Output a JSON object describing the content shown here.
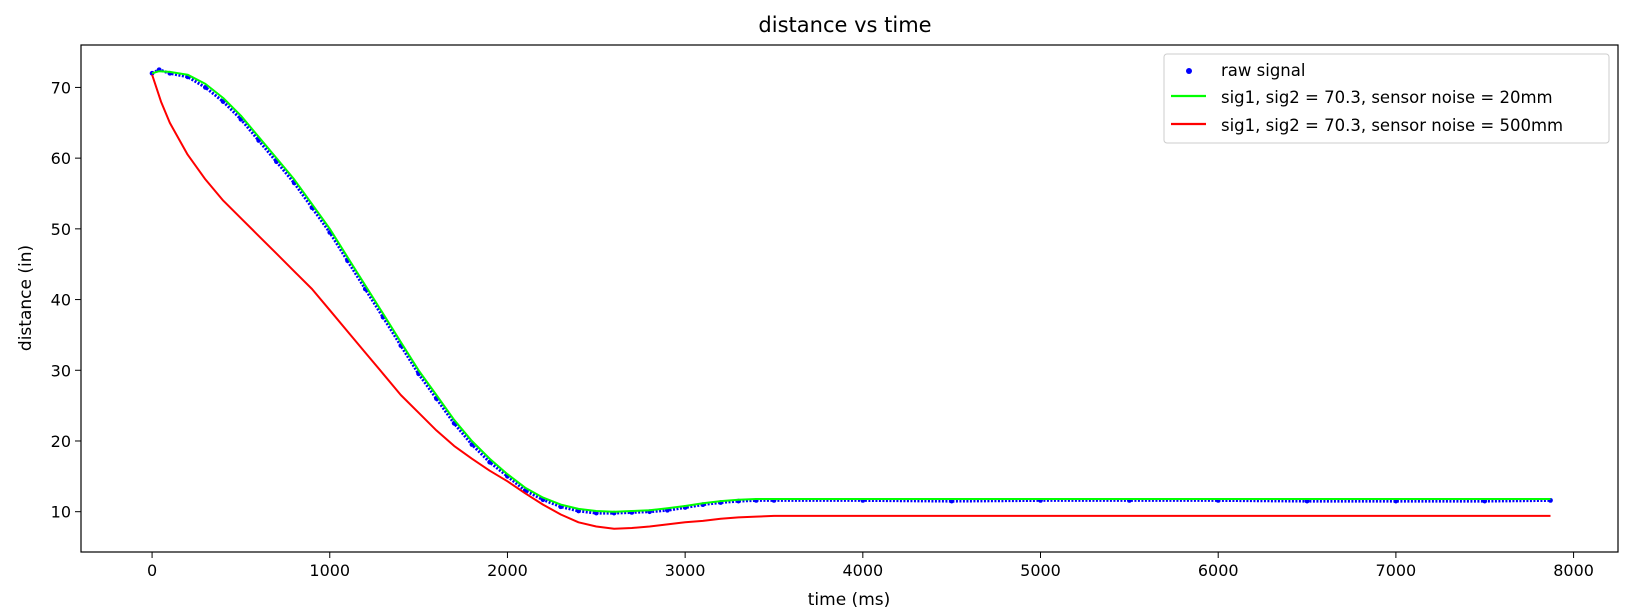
{
  "chart_data": {
    "type": "line",
    "title": "distance vs time",
    "xlabel": "time (ms)",
    "ylabel": "distance (in)",
    "xlim": [
      -400,
      8250
    ],
    "ylim": [
      4.3,
      76
    ],
    "xticks": [
      0,
      1000,
      2000,
      3000,
      4000,
      5000,
      6000,
      7000,
      8000
    ],
    "yticks": [
      10,
      20,
      30,
      40,
      50,
      60,
      70
    ],
    "grid": false,
    "legend_position": "top-right",
    "series": [
      {
        "name": "raw signal",
        "kind": "scatter",
        "color": "#0000ff",
        "x": [
          0,
          40,
          100,
          200,
          300,
          400,
          500,
          600,
          700,
          800,
          900,
          1000,
          1100,
          1200,
          1300,
          1400,
          1500,
          1600,
          1700,
          1800,
          1900,
          2000,
          2100,
          2200,
          2300,
          2400,
          2500,
          2600,
          2700,
          2800,
          2900,
          3000,
          3100,
          3200,
          3300,
          3400,
          3500,
          4000,
          4500,
          5000,
          5500,
          6000,
          6500,
          7000,
          7500,
          7870
        ],
        "y": [
          72,
          72.5,
          72,
          71.5,
          70,
          68,
          65.5,
          62.5,
          59.5,
          56.5,
          53,
          49.5,
          45.5,
          41.5,
          37.5,
          33.5,
          29.5,
          26,
          22.5,
          19.5,
          17,
          15,
          13,
          11.7,
          10.7,
          10.1,
          9.8,
          9.8,
          9.9,
          10,
          10.2,
          10.6,
          11,
          11.3,
          11.5,
          11.6,
          11.6,
          11.6,
          11.5,
          11.6,
          11.6,
          11.6,
          11.5,
          11.5,
          11.5,
          11.6
        ]
      },
      {
        "name": "sig1, sig2 = 70.3, sensor noise = 20mm",
        "kind": "line",
        "color": "#00ff00",
        "x": [
          0,
          40,
          100,
          200,
          300,
          400,
          500,
          600,
          700,
          800,
          900,
          1000,
          1100,
          1200,
          1300,
          1400,
          1500,
          1600,
          1700,
          1800,
          1900,
          2000,
          2100,
          2200,
          2300,
          2400,
          2500,
          2600,
          2700,
          2800,
          2900,
          3000,
          3100,
          3200,
          3300,
          3400,
          3500,
          4000,
          4500,
          5000,
          5500,
          6000,
          6500,
          7000,
          7500,
          7870
        ],
        "y": [
          72,
          72.3,
          72.2,
          71.8,
          70.5,
          68.5,
          66,
          63,
          60,
          57,
          53.5,
          50,
          46,
          42,
          38,
          34,
          30,
          26.5,
          23,
          20,
          17.5,
          15.3,
          13.4,
          12,
          11,
          10.4,
          10.1,
          10,
          10.1,
          10.2,
          10.5,
          10.8,
          11.2,
          11.5,
          11.7,
          11.8,
          11.8,
          11.8,
          11.8,
          11.8,
          11.8,
          11.8,
          11.8,
          11.8,
          11.8,
          11.8
        ]
      },
      {
        "name": "sig1, sig2 = 70.3, sensor noise = 500mm",
        "kind": "line",
        "color": "#ff0000",
        "x": [
          0,
          50,
          100,
          200,
          300,
          400,
          500,
          600,
          700,
          800,
          900,
          1000,
          1100,
          1200,
          1300,
          1400,
          1500,
          1600,
          1700,
          1800,
          1900,
          2000,
          2100,
          2200,
          2300,
          2400,
          2500,
          2600,
          2700,
          2800,
          2900,
          3000,
          3100,
          3200,
          3300,
          3400,
          3500,
          4000,
          4500,
          5000,
          5500,
          6000,
          6500,
          7000,
          7500,
          7870
        ],
        "y": [
          71.8,
          68,
          65,
          60.5,
          57,
          54,
          51.5,
          49,
          46.5,
          44,
          41.5,
          38.5,
          35.5,
          32.5,
          29.5,
          26.5,
          24,
          21.5,
          19.3,
          17.5,
          15.8,
          14.3,
          12.6,
          11,
          9.6,
          8.5,
          7.9,
          7.6,
          7.7,
          7.9,
          8.2,
          8.5,
          8.7,
          9,
          9.2,
          9.3,
          9.4,
          9.4,
          9.4,
          9.4,
          9.4,
          9.4,
          9.4,
          9.4,
          9.4,
          9.4
        ]
      }
    ]
  }
}
